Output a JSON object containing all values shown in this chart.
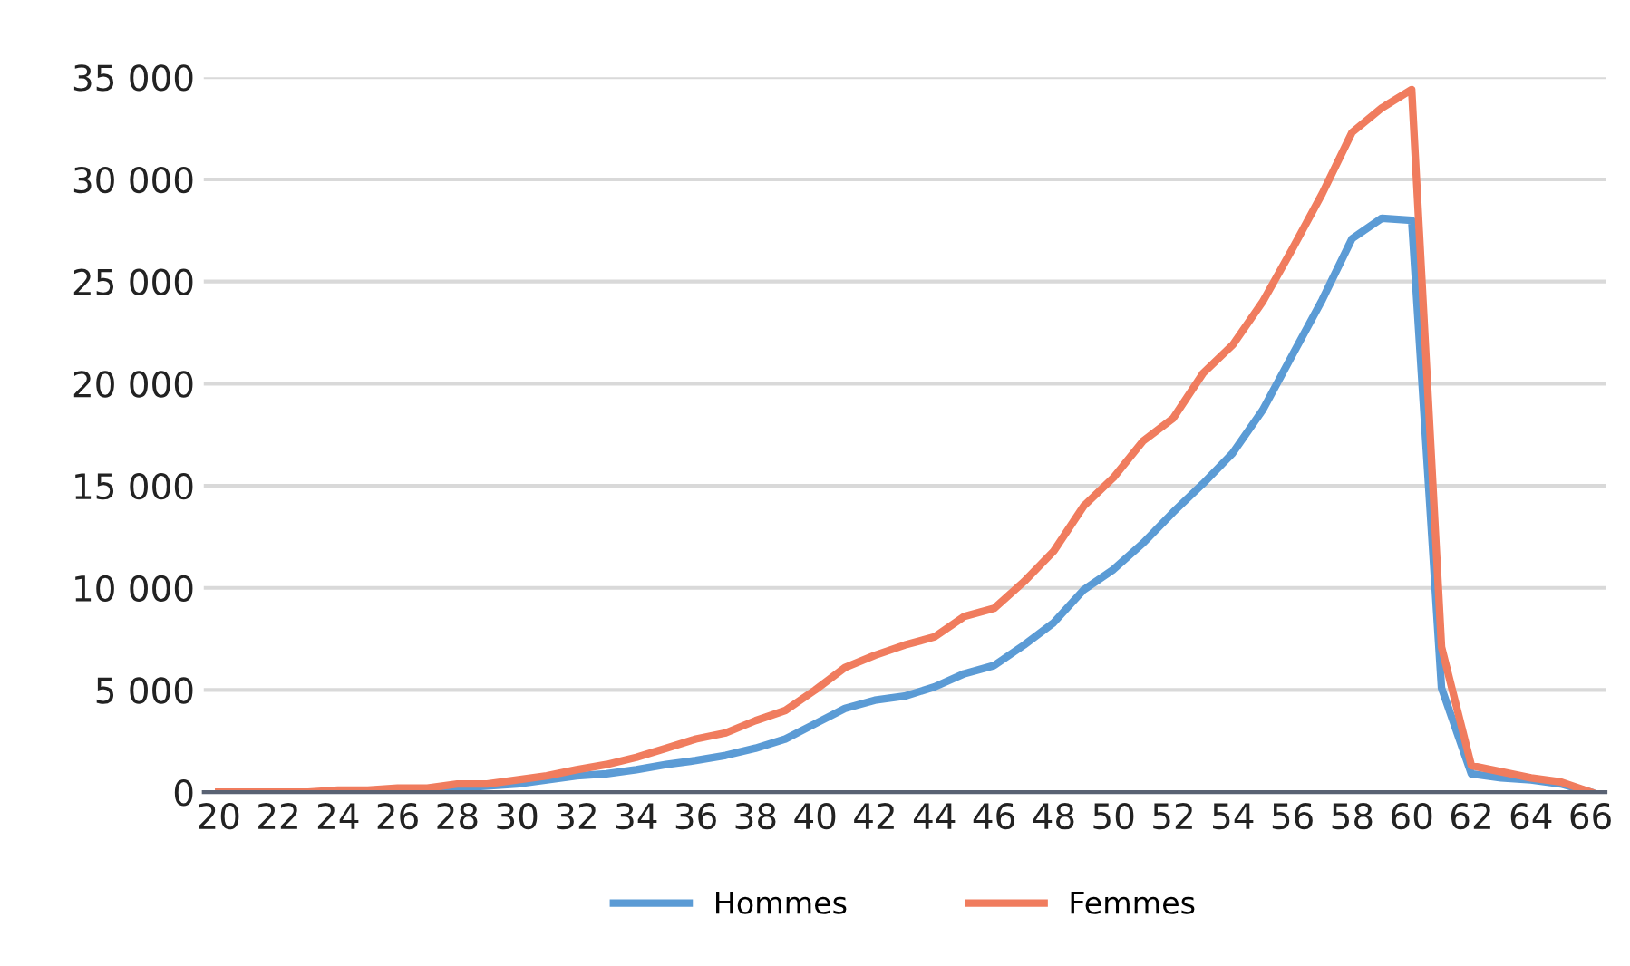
{
  "chart_data": {
    "type": "line",
    "x": [
      20,
      21,
      22,
      23,
      24,
      25,
      26,
      27,
      28,
      29,
      30,
      31,
      32,
      33,
      34,
      35,
      36,
      37,
      38,
      39,
      40,
      41,
      42,
      43,
      44,
      45,
      46,
      47,
      48,
      49,
      50,
      51,
      52,
      53,
      54,
      55,
      56,
      57,
      58,
      59,
      60,
      61,
      62,
      63,
      64,
      65,
      66
    ],
    "series": [
      {
        "name": "Hommes",
        "color": "#5b9bd5",
        "values": [
          null,
          null,
          null,
          null,
          null,
          null,
          null,
          100,
          200,
          300,
          400,
          600,
          800,
          900,
          1100,
          1350,
          1550,
          1800,
          2150,
          2600,
          3350,
          4100,
          4500,
          4700,
          5150,
          5800,
          6200,
          7200,
          8300,
          9900,
          10900,
          12200,
          13700,
          15100,
          16600,
          18700,
          21400,
          24100,
          27100,
          28100,
          28000,
          5100,
          900,
          700,
          600,
          400,
          0
        ]
      },
      {
        "name": "Femmes",
        "color": "#f07c5e",
        "values": [
          0,
          0,
          0,
          0,
          100,
          100,
          200,
          200,
          400,
          400,
          600,
          800,
          1100,
          1350,
          1700,
          2150,
          2600,
          2900,
          3500,
          4000,
          5000,
          6100,
          6700,
          7200,
          7600,
          8600,
          9000,
          10300,
          11800,
          14000,
          15400,
          17200,
          18300,
          20500,
          21900,
          24000,
          26600,
          29300,
          32300,
          33500,
          34400,
          7100,
          1300,
          1000,
          700,
          500,
          0
        ]
      }
    ],
    "xlim": [
      19.5,
      66.5
    ],
    "xticks": [
      20,
      22,
      24,
      26,
      28,
      30,
      32,
      34,
      36,
      38,
      40,
      42,
      44,
      46,
      48,
      50,
      52,
      54,
      56,
      58,
      60,
      62,
      64,
      66
    ],
    "ylim": [
      0,
      35000
    ],
    "yticks": [
      {
        "value": 0,
        "label": "0"
      },
      {
        "value": 5000,
        "label": "5 000"
      },
      {
        "value": 10000,
        "label": "10 000"
      },
      {
        "value": 15000,
        "label": "15 000"
      },
      {
        "value": 20000,
        "label": "20 000"
      },
      {
        "value": 25000,
        "label": "25 000"
      },
      {
        "value": 30000,
        "label": "30 000"
      },
      {
        "value": 35000,
        "label": "35 000"
      }
    ],
    "grid": "y",
    "legend": "bottom",
    "marker": "none",
    "line_style": "solid"
  }
}
